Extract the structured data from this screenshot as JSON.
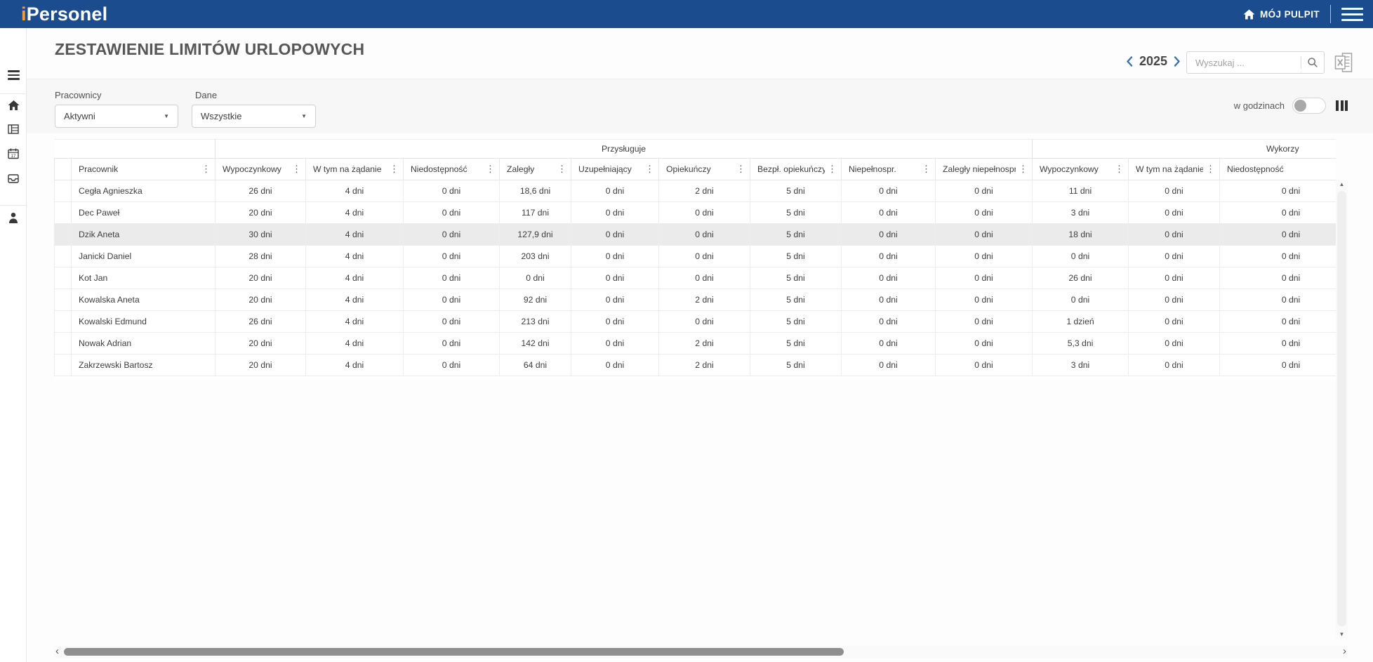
{
  "topbar": {
    "logo_accent": "i",
    "logo_text": "Personel",
    "my_desktop_label": "MÓJ PULPIT"
  },
  "page_title": "ZESTAWIENIE LIMITÓW URLOPOWYCH",
  "toolbar": {
    "year": "2025",
    "search_placeholder": "Wyszukaj ..."
  },
  "filters": {
    "employees_label": "Pracownicy",
    "employees_value": "Aktywni",
    "data_label": "Dane",
    "data_value": "Wszystkie",
    "hours_label": "w godzinach",
    "hours_enabled": false
  },
  "table": {
    "group_headers": {
      "entitled": "Przysługuje",
      "used": "Wykorzy"
    },
    "columns": [
      "Pracownik",
      "Wypoczynkowy",
      "W tym na żądanie",
      "Niedostępność",
      "Zaległy",
      "Uzupełniający",
      "Opiekuńczy",
      "Bezpł. opiekuńczy",
      "Niepełnospr.",
      "Zaległy niepełnospr.",
      "Wypoczynkowy",
      "W tym na żądanie",
      "Niedostępność"
    ],
    "rows": [
      {
        "name": "Cegła Agnieszka",
        "selected": false,
        "values": [
          "26 dni",
          "4 dni",
          "0 dni",
          "18,6 dni",
          "0 dni",
          "2 dni",
          "5 dni",
          "0 dni",
          "0 dni",
          "11 dni",
          "0 dni",
          "0 dni"
        ]
      },
      {
        "name": "Dec Paweł",
        "selected": false,
        "values": [
          "20 dni",
          "4 dni",
          "0 dni",
          "117 dni",
          "0 dni",
          "0 dni",
          "5 dni",
          "0 dni",
          "0 dni",
          "3 dni",
          "0 dni",
          "0 dni"
        ]
      },
      {
        "name": "Dzik Aneta",
        "selected": true,
        "values": [
          "30 dni",
          "4 dni",
          "0 dni",
          "127,9 dni",
          "0 dni",
          "0 dni",
          "5 dni",
          "0 dni",
          "0 dni",
          "18 dni",
          "0 dni",
          "0 dni"
        ]
      },
      {
        "name": "Janicki Daniel",
        "selected": false,
        "values": [
          "28 dni",
          "4 dni",
          "0 dni",
          "203 dni",
          "0 dni",
          "0 dni",
          "5 dni",
          "0 dni",
          "0 dni",
          "0 dni",
          "0 dni",
          "0 dni"
        ]
      },
      {
        "name": "Kot Jan",
        "selected": false,
        "values": [
          "20 dni",
          "4 dni",
          "0 dni",
          "0 dni",
          "0 dni",
          "0 dni",
          "5 dni",
          "0 dni",
          "0 dni",
          "26 dni",
          "0 dni",
          "0 dni"
        ]
      },
      {
        "name": "Kowalska Aneta",
        "selected": false,
        "values": [
          "20 dni",
          "4 dni",
          "0 dni",
          "92 dni",
          "0 dni",
          "2 dni",
          "5 dni",
          "0 dni",
          "0 dni",
          "0 dni",
          "0 dni",
          "0 dni"
        ]
      },
      {
        "name": "Kowalski Edmund",
        "selected": false,
        "values": [
          "26 dni",
          "4 dni",
          "0 dni",
          "213 dni",
          "0 dni",
          "0 dni",
          "5 dni",
          "0 dni",
          "0 dni",
          "1 dzień",
          "0 dni",
          "0 dni"
        ]
      },
      {
        "name": "Nowak Adrian",
        "selected": false,
        "values": [
          "20 dni",
          "4 dni",
          "0 dni",
          "142 dni",
          "0 dni",
          "2 dni",
          "5 dni",
          "0 dni",
          "0 dni",
          "5,3 dni",
          "0 dni",
          "0 dni"
        ]
      },
      {
        "name": "Zakrzewski Bartosz",
        "selected": false,
        "values": [
          "20 dni",
          "4 dni",
          "0 dni",
          "64 dni",
          "0 dni",
          "2 dni",
          "5 dni",
          "0 dni",
          "0 dni",
          "3 dni",
          "0 dni",
          "0 dni"
        ]
      }
    ]
  },
  "colors": {
    "topbar_blue": "#1b4c8e",
    "logo_accent": "#f0a13c",
    "chevron_blue": "#3a72a8",
    "selected_row": "#ebebeb"
  }
}
